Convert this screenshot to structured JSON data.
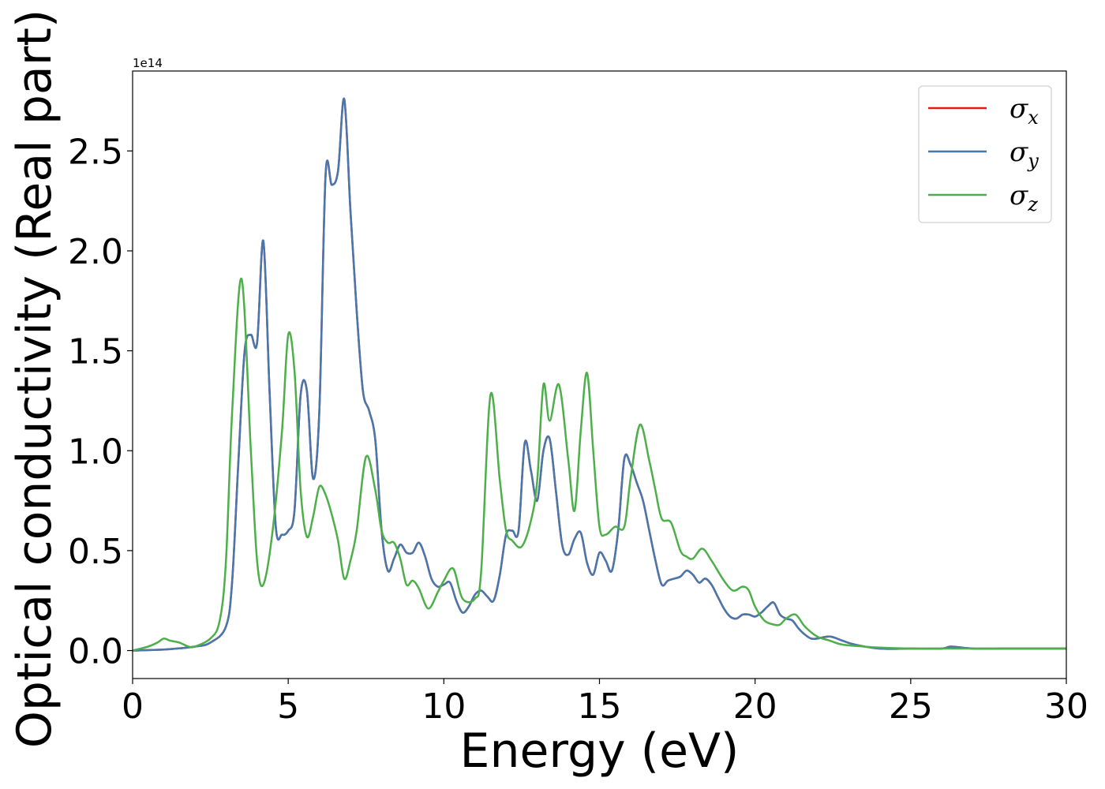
{
  "chart_data": {
    "type": "line",
    "title": "",
    "xlabel": "Energy (eV)",
    "ylabel": "Optical conductivity (Real part)",
    "y_offset_text": "1e14",
    "y_multiplier": 100000000000000.0,
    "xlim": [
      0,
      30
    ],
    "ylim": [
      -0.14,
      2.9
    ],
    "xticks": [
      0,
      5,
      10,
      15,
      20,
      25,
      30
    ],
    "xtick_labels": [
      "0",
      "5",
      "10",
      "15",
      "20",
      "25",
      "30"
    ],
    "yticks": [
      0.0,
      0.5,
      1.0,
      1.5,
      2.0,
      2.5
    ],
    "ytick_labels": [
      "0.0",
      "0.5",
      "1.0",
      "1.5",
      "2.0",
      "2.5"
    ],
    "grid": false,
    "legend_position": "top-right",
    "series": [
      {
        "name": "σx",
        "symbol": "σ",
        "subscript": "x",
        "color": "#e41a1c",
        "x": [
          0,
          1,
          2,
          2.5,
          3,
          3.2,
          3.4,
          3.6,
          3.8,
          4.0,
          4.2,
          4.4,
          4.6,
          4.8,
          5.0,
          5.2,
          5.4,
          5.6,
          5.8,
          6.0,
          6.2,
          6.4,
          6.6,
          6.8,
          7.0,
          7.2,
          7.4,
          7.6,
          7.8,
          8.0,
          8.2,
          8.4,
          8.6,
          8.8,
          9.0,
          9.2,
          9.4,
          9.6,
          9.8,
          10.0,
          10.2,
          10.4,
          10.6,
          10.8,
          11.0,
          11.2,
          11.4,
          11.6,
          11.8,
          12.0,
          12.2,
          12.4,
          12.6,
          12.8,
          13.0,
          13.2,
          13.4,
          13.6,
          13.8,
          14.0,
          14.2,
          14.4,
          14.6,
          14.8,
          15.0,
          15.2,
          15.4,
          15.6,
          15.8,
          16.0,
          16.2,
          16.4,
          16.6,
          16.8,
          17.0,
          17.2,
          17.4,
          17.6,
          17.8,
          18.0,
          18.2,
          18.4,
          18.6,
          18.8,
          19.0,
          19.2,
          19.4,
          19.6,
          19.8,
          20.0,
          20.2,
          20.4,
          20.6,
          20.8,
          21.0,
          21.2,
          21.4,
          21.6,
          21.8,
          22.0,
          22.4,
          22.8,
          23.2,
          24,
          25,
          26,
          26.3,
          27,
          28,
          29,
          30
        ],
        "y": [
          0,
          0.005,
          0.02,
          0.04,
          0.12,
          0.35,
          0.95,
          1.5,
          1.58,
          1.54,
          2.05,
          1.3,
          0.62,
          0.58,
          0.6,
          0.7,
          1.28,
          1.3,
          0.86,
          1.2,
          2.38,
          2.33,
          2.4,
          2.76,
          2.2,
          1.7,
          1.3,
          1.2,
          1.05,
          0.6,
          0.4,
          0.46,
          0.53,
          0.49,
          0.49,
          0.54,
          0.47,
          0.36,
          0.32,
          0.33,
          0.34,
          0.25,
          0.19,
          0.22,
          0.28,
          0.3,
          0.27,
          0.25,
          0.38,
          0.58,
          0.6,
          0.6,
          1.04,
          0.9,
          0.75,
          1.0,
          1.06,
          0.8,
          0.53,
          0.48,
          0.56,
          0.59,
          0.44,
          0.38,
          0.49,
          0.45,
          0.4,
          0.6,
          0.96,
          0.93,
          0.84,
          0.75,
          0.6,
          0.45,
          0.33,
          0.35,
          0.36,
          0.37,
          0.4,
          0.38,
          0.34,
          0.36,
          0.33,
          0.27,
          0.21,
          0.17,
          0.16,
          0.18,
          0.18,
          0.17,
          0.19,
          0.22,
          0.24,
          0.18,
          0.16,
          0.15,
          0.11,
          0.08,
          0.06,
          0.06,
          0.07,
          0.05,
          0.03,
          0.01,
          0.01,
          0.01,
          0.02,
          0.01,
          0.01,
          0.01,
          0.01
        ]
      },
      {
        "name": "σy",
        "symbol": "σ",
        "subscript": "y",
        "color": "#4677ad",
        "x": [
          0,
          1,
          2,
          2.5,
          3,
          3.2,
          3.4,
          3.6,
          3.8,
          4.0,
          4.2,
          4.4,
          4.6,
          4.8,
          5.0,
          5.2,
          5.4,
          5.6,
          5.8,
          6.0,
          6.2,
          6.4,
          6.6,
          6.8,
          7.0,
          7.2,
          7.4,
          7.6,
          7.8,
          8.0,
          8.2,
          8.4,
          8.6,
          8.8,
          9.0,
          9.2,
          9.4,
          9.6,
          9.8,
          10.0,
          10.2,
          10.4,
          10.6,
          10.8,
          11.0,
          11.2,
          11.4,
          11.6,
          11.8,
          12.0,
          12.2,
          12.4,
          12.6,
          12.8,
          13.0,
          13.2,
          13.4,
          13.6,
          13.8,
          14.0,
          14.2,
          14.4,
          14.6,
          14.8,
          15.0,
          15.2,
          15.4,
          15.6,
          15.8,
          16.0,
          16.2,
          16.4,
          16.6,
          16.8,
          17.0,
          17.2,
          17.4,
          17.6,
          17.8,
          18.0,
          18.2,
          18.4,
          18.6,
          18.8,
          19.0,
          19.2,
          19.4,
          19.6,
          19.8,
          20.0,
          20.2,
          20.4,
          20.6,
          20.8,
          21.0,
          21.2,
          21.4,
          21.6,
          21.8,
          22.0,
          22.4,
          22.8,
          23.2,
          24,
          25,
          26,
          26.3,
          27,
          28,
          29,
          30
        ],
        "y": [
          0,
          0.005,
          0.02,
          0.04,
          0.12,
          0.35,
          0.95,
          1.5,
          1.58,
          1.54,
          2.05,
          1.3,
          0.62,
          0.58,
          0.6,
          0.7,
          1.28,
          1.3,
          0.86,
          1.2,
          2.38,
          2.33,
          2.4,
          2.76,
          2.2,
          1.7,
          1.3,
          1.2,
          1.05,
          0.6,
          0.4,
          0.46,
          0.53,
          0.49,
          0.49,
          0.54,
          0.47,
          0.36,
          0.32,
          0.33,
          0.34,
          0.25,
          0.19,
          0.22,
          0.28,
          0.3,
          0.27,
          0.25,
          0.38,
          0.58,
          0.6,
          0.6,
          1.04,
          0.9,
          0.75,
          1.0,
          1.06,
          0.8,
          0.53,
          0.48,
          0.56,
          0.59,
          0.44,
          0.38,
          0.49,
          0.45,
          0.4,
          0.6,
          0.96,
          0.93,
          0.84,
          0.75,
          0.6,
          0.45,
          0.33,
          0.35,
          0.36,
          0.37,
          0.4,
          0.38,
          0.34,
          0.36,
          0.33,
          0.27,
          0.21,
          0.17,
          0.16,
          0.18,
          0.18,
          0.17,
          0.19,
          0.22,
          0.24,
          0.18,
          0.16,
          0.15,
          0.11,
          0.08,
          0.06,
          0.06,
          0.07,
          0.05,
          0.03,
          0.01,
          0.01,
          0.01,
          0.02,
          0.01,
          0.01,
          0.01,
          0.01
        ]
      },
      {
        "name": "σz",
        "symbol": "σ",
        "subscript": "z",
        "color": "#4daf4a",
        "x": [
          0,
          0.5,
          0.8,
          1.0,
          1.2,
          1.5,
          1.8,
          2.0,
          2.5,
          2.8,
          3.0,
          3.2,
          3.5,
          3.8,
          4.0,
          4.2,
          4.5,
          4.8,
          5.0,
          5.2,
          5.4,
          5.6,
          5.8,
          6.0,
          6.2,
          6.4,
          6.6,
          6.8,
          7.0,
          7.2,
          7.5,
          7.8,
          8.0,
          8.2,
          8.4,
          8.6,
          8.8,
          9.0,
          9.2,
          9.5,
          9.8,
          10.0,
          10.3,
          10.6,
          11.0,
          11.2,
          11.5,
          11.8,
          12.0,
          12.2,
          12.5,
          12.8,
          13.0,
          13.2,
          13.4,
          13.7,
          14.0,
          14.2,
          14.4,
          14.6,
          14.8,
          15.0,
          15.2,
          15.5,
          15.8,
          16.0,
          16.3,
          16.6,
          16.8,
          17.0,
          17.3,
          17.6,
          17.8,
          18.0,
          18.3,
          18.6,
          19.0,
          19.3,
          19.6,
          19.8,
          20.0,
          20.3,
          20.6,
          20.8,
          21.0,
          21.3,
          21.6,
          22.0,
          22.4,
          22.8,
          23.5,
          24,
          25,
          26,
          27,
          28,
          29,
          30
        ],
        "y": [
          0,
          0.02,
          0.04,
          0.06,
          0.05,
          0.04,
          0.02,
          0.02,
          0.06,
          0.15,
          0.45,
          1.2,
          1.86,
          1.0,
          0.45,
          0.33,
          0.6,
          1.1,
          1.58,
          1.4,
          0.8,
          0.57,
          0.67,
          0.82,
          0.78,
          0.68,
          0.55,
          0.36,
          0.45,
          0.6,
          0.97,
          0.8,
          0.6,
          0.54,
          0.54,
          0.46,
          0.33,
          0.35,
          0.31,
          0.21,
          0.29,
          0.35,
          0.41,
          0.26,
          0.26,
          0.4,
          1.28,
          0.85,
          0.6,
          0.55,
          0.52,
          0.65,
          0.85,
          1.33,
          1.15,
          1.33,
          0.95,
          0.7,
          1.1,
          1.39,
          1.0,
          0.62,
          0.58,
          0.62,
          0.62,
          0.86,
          1.13,
          0.95,
          0.8,
          0.66,
          0.64,
          0.5,
          0.47,
          0.46,
          0.51,
          0.45,
          0.35,
          0.3,
          0.32,
          0.3,
          0.22,
          0.15,
          0.13,
          0.13,
          0.16,
          0.18,
          0.12,
          0.07,
          0.05,
          0.03,
          0.02,
          0.015,
          0.01,
          0.01,
          0.01,
          0.01,
          0.01,
          0.01
        ]
      }
    ]
  }
}
